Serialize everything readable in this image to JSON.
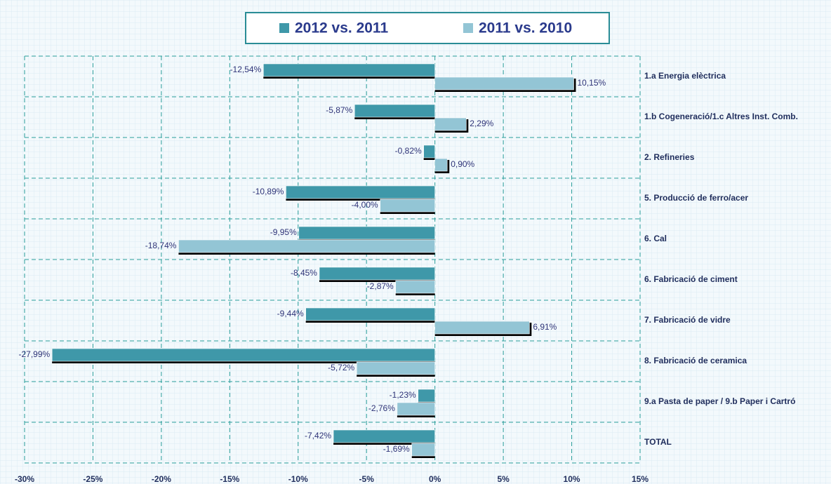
{
  "chart_data": {
    "type": "hbar",
    "categories": [
      "1.a Energia elèctrica",
      "1.b Cogeneració/1.c Altres Inst. Comb.",
      "2. Refineries",
      "5. Producció de ferro/acer",
      "6. Cal",
      "6. Fabricació de ciment",
      "7. Fabricació de vidre",
      "8. Fabricació de ceramica",
      "9.a Pasta de paper / 9.b Paper i Cartró",
      "TOTAL"
    ],
    "series": [
      {
        "name": "2012 vs. 2011",
        "color": "#3f98a9",
        "values": [
          -12.54,
          -5.87,
          -0.82,
          -10.89,
          -9.95,
          -8.45,
          -9.44,
          -27.99,
          -1.23,
          -7.42
        ],
        "value_labels": [
          "-12,54%",
          "-5,87%",
          "-0,82%",
          "-10,89%",
          "-9,95%",
          "-8,45%",
          "-9,44%",
          "-27,99%",
          "-1,23%",
          "-7,42%"
        ]
      },
      {
        "name": "2011 vs. 2010",
        "color": "#93c5d5",
        "values": [
          10.15,
          2.29,
          0.9,
          -4.0,
          -18.74,
          -2.87,
          6.91,
          -5.72,
          -2.76,
          -1.69
        ],
        "value_labels": [
          "10,15%",
          "2,29%",
          "0,90%",
          "-4,00%",
          "-18,74%",
          "-2,87%",
          "6,91%",
          "-5,72%",
          "-2,76%",
          "-1,69%"
        ]
      }
    ],
    "xlim": [
      -30,
      15
    ],
    "xticks": [
      {
        "value": -30,
        "label": "-30%"
      },
      {
        "value": -25,
        "label": "-25%"
      },
      {
        "value": -20,
        "label": "-20%"
      },
      {
        "value": -15,
        "label": "-15%"
      },
      {
        "value": -10,
        "label": "-10%"
      },
      {
        "value": -5,
        "label": "-5%"
      },
      {
        "value": 0,
        "label": "0%"
      },
      {
        "value": 5,
        "label": "5%"
      },
      {
        "value": 10,
        "label": "10%"
      },
      {
        "value": 15,
        "label": "15%"
      }
    ],
    "grid": true,
    "legend": "top"
  }
}
